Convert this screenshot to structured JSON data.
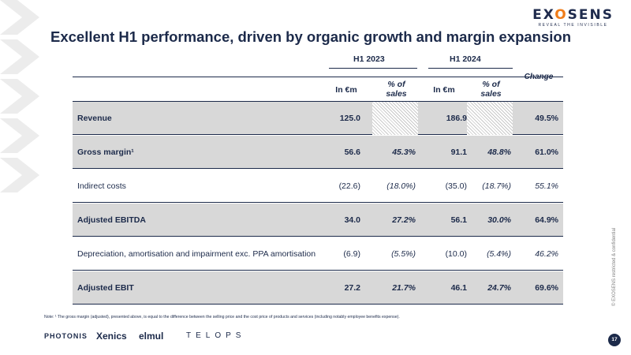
{
  "logo": {
    "name_pre": "EX",
    "name_o": "O",
    "name_post": "SENS",
    "tagline": "REVEAL THE INVISIBLE"
  },
  "title": "Excellent H1 performance, driven by organic growth and margin expansion",
  "table": {
    "period_2023": "H1 2023",
    "period_2024": "H1 2024",
    "col_in_em": "In €m",
    "col_pct_sales": "% of sales",
    "col_change": "Change",
    "rows": [
      {
        "label": "Revenue",
        "v2023": "125.0",
        "p2023": "",
        "v2024": "186.9",
        "p2024": "",
        "change": "49.5%"
      },
      {
        "label": "Gross margin¹",
        "v2023": "56.6",
        "p2023": "45.3%",
        "v2024": "91.1",
        "p2024": "48.8%",
        "change": "61.0%"
      },
      {
        "label": "Indirect costs",
        "v2023": "(22.6)",
        "p2023": "(18.0%)",
        "v2024": "(35.0)",
        "p2024": "(18.7%)",
        "change": "55.1%"
      },
      {
        "label": "Adjusted EBITDA",
        "v2023": "34.0",
        "p2023": "27.2%",
        "v2024": "56.1",
        "p2024": "30.0%",
        "change": "64.9%"
      },
      {
        "label": "Depreciation, amortisation and impairment exc. PPA amortisation",
        "v2023": "(6.9)",
        "p2023": "(5.5%)",
        "v2024": "(10.0)",
        "p2024": "(5.4%)",
        "change": "46.2%"
      },
      {
        "label": "Adjusted EBIT",
        "v2023": "27.2",
        "p2023": "21.7%",
        "v2024": "46.1",
        "p2024": "24.7%",
        "change": "69.6%"
      }
    ]
  },
  "note": "Note: ¹ The gross margin (adjusted), presented above, is equal to the difference between the selling price and the cost price of products and services (including notably employee benefits expense).",
  "brands": {
    "photonis": "PHOTONIS",
    "xenics": "Xenics",
    "elmul": "elmul",
    "telops": "TELOPS"
  },
  "confidential": "© EXOSENS restricted & confidential",
  "page_number": "17",
  "colors": {
    "navy": "#1c2a4a",
    "accent_orange": "#f07d1a",
    "shaded_row": "#d8d8d8",
    "chevron": "#ececec"
  }
}
